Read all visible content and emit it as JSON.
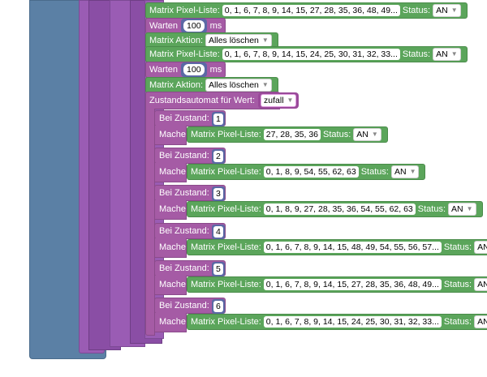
{
  "canvas": {
    "background": "#ffffff"
  },
  "colors": {
    "loop_blue": "#5b80a5",
    "procedure_purple": "#9a5cb4",
    "matrix_green": "#5ba55b",
    "number_blue": "#5b68a5",
    "state_purple": "#a55ba5"
  },
  "blocks": {
    "top": [
      {
        "kind": "matrix",
        "label": "Matrix Pixel-Liste:",
        "list": "0, 1, 6, 7, 8, 9, 14, 15, 27, 28, 35, 36, 48, 49...",
        "status_label": "Status:",
        "status": "AN"
      },
      {
        "kind": "wait",
        "label": "Warten",
        "value": "100",
        "unit": "ms"
      },
      {
        "kind": "action",
        "label": "Matrix Aktion:",
        "value": "Alles löschen"
      },
      {
        "kind": "matrix",
        "label": "Matrix Pixel-Liste:",
        "list": "0, 1, 6, 7, 8, 9, 14, 15, 24, 25, 30, 31, 32, 33...",
        "status_label": "Status:",
        "status": "AN"
      },
      {
        "kind": "wait",
        "label": "Warten",
        "value": "100",
        "unit": "ms"
      },
      {
        "kind": "action",
        "label": "Matrix Aktion:",
        "value": "Alles löschen"
      }
    ],
    "state_machine": {
      "label": "Zustandsautomat für Wert:",
      "value": "zufall"
    },
    "cases": [
      {
        "when_label": "Bei Zustand:",
        "state": "1",
        "do_label": "Mache:",
        "list_label": "Matrix Pixel-Liste:",
        "list": "27, 28, 35, 36",
        "status_label": "Status:",
        "status": "AN"
      },
      {
        "when_label": "Bei Zustand:",
        "state": "2",
        "do_label": "Mache:",
        "list_label": "Matrix Pixel-Liste:",
        "list": "0, 1, 8, 9, 54, 55, 62, 63",
        "status_label": "Status:",
        "status": "AN"
      },
      {
        "when_label": "Bei Zustand:",
        "state": "3",
        "do_label": "Mache:",
        "list_label": "Matrix Pixel-Liste:",
        "list": "0, 1, 8, 9, 27, 28, 35, 36, 54, 55, 62, 63",
        "status_label": "Status:",
        "status": "AN"
      },
      {
        "when_label": "Bei Zustand:",
        "state": "4",
        "do_label": "Mache:",
        "list_label": "Matrix Pixel-Liste:",
        "list": "0, 1, 6, 7, 8, 9, 14, 15, 48, 49, 54, 55, 56, 57...",
        "status_label": "Status:",
        "status": "AN"
      },
      {
        "when_label": "Bei Zustand:",
        "state": "5",
        "do_label": "Mache:",
        "list_label": "Matrix Pixel-Liste:",
        "list": "0, 1, 6, 7, 8, 9, 14, 15, 27, 28, 35, 36, 48, 49...",
        "status_label": "Status:",
        "status": "AN"
      },
      {
        "when_label": "Bei Zustand:",
        "state": "6",
        "do_label": "Mache:",
        "list_label": "Matrix Pixel-Liste:",
        "list": "0, 1, 6, 7, 8, 9, 14, 15, 24, 25, 30, 31, 32, 33...",
        "status_label": "Status:",
        "status": "AN"
      }
    ]
  }
}
